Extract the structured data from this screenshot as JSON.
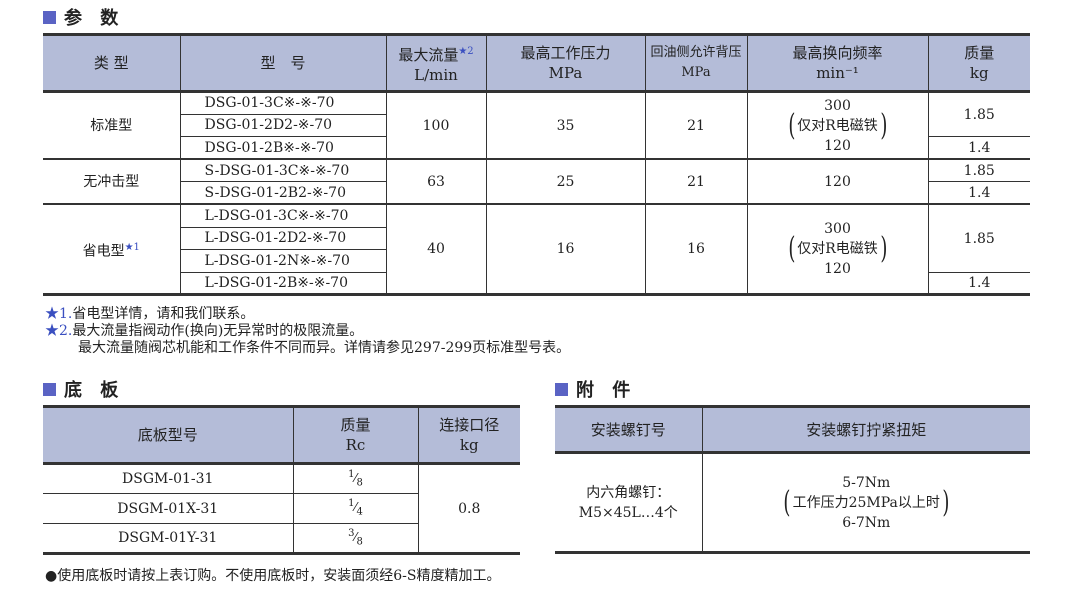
{
  "colors": {
    "header_bg": "#b4bcd8",
    "marker": "#5a63c4",
    "star": "#3a4fc0"
  },
  "params": {
    "title": "参 数",
    "headers": [
      {
        "l1": "类 型"
      },
      {
        "l1": "型　号"
      },
      {
        "l1": "最大流量",
        "sup": "★2",
        "l2": "L/min"
      },
      {
        "l1": "最高工作压力",
        "l2": "MPa"
      },
      {
        "l1": "回油侧允许背压",
        "l2": "MPa"
      },
      {
        "l1": "最高换向频率",
        "l2": "min⁻¹"
      },
      {
        "l1": "质量",
        "l2": "kg"
      }
    ],
    "groups": [
      {
        "type": "标准型",
        "models": [
          "DSG-01-3C※-※-70",
          "DSG-01-2D2-※-70",
          "DSG-01-2B※-※-70"
        ],
        "flow": "100",
        "pressure": "35",
        "back": "21",
        "freq": {
          "a": "300",
          "note": "仅对R电磁铁",
          "b": "120"
        },
        "mass": [
          "1.85",
          "1.4"
        ]
      },
      {
        "type": "无冲击型",
        "models": [
          "S-DSG-01-3C※-※-70",
          "S-DSG-01-2B2-※-70"
        ],
        "flow": "63",
        "pressure": "25",
        "back": "21",
        "freq": "120",
        "mass": [
          "1.85",
          "1.4"
        ]
      },
      {
        "type": "省电型",
        "sup": "★1",
        "models": [
          "L-DSG-01-3C※-※-70",
          "L-DSG-01-2D2-※-70",
          "L-DSG-01-2N※-※-70",
          "L-DSG-01-2B※-※-70"
        ],
        "flow": "40",
        "pressure": "16",
        "back": "16",
        "freq": {
          "a": "300",
          "note": "仅对R电磁铁",
          "b": "120"
        },
        "mass": [
          "1.85",
          "1.4"
        ]
      }
    ],
    "notes": [
      {
        "star": "★1.",
        "text": "省电型详情，请和我们联系。"
      },
      {
        "star": "★2.",
        "text": "最大流量指阀动作(换向)无异常时的极限流量。"
      },
      {
        "star": "",
        "text": "最大流量随阀芯机能和工作条件不同而异。详情请参见297-299页标准型号表。"
      }
    ]
  },
  "base": {
    "title": "底 板",
    "headers": [
      "底板型号",
      {
        "l1": "质量",
        "l2": "Rc"
      },
      {
        "l1": "连接口径",
        "l2": "kg"
      }
    ],
    "rows": [
      {
        "model": "DSGM-01-31",
        "num": "1",
        "den": "8"
      },
      {
        "model": "DSGM-01X-31",
        "num": "1",
        "den": "4"
      },
      {
        "model": "DSGM-01Y-31",
        "num": "3",
        "den": "8"
      }
    ],
    "mass": "0.8",
    "note": "●使用底板时请按上表订购。不使用底板时，安装面须经6-S精度精加工。"
  },
  "acc": {
    "title": "附 件",
    "headers": [
      "安装螺钉号",
      "安装螺钉拧紧扭矩"
    ],
    "screw": [
      "内六角螺钉：",
      "M5×45L…4个"
    ],
    "torque": {
      "a": "5-7Nm",
      "note": "工作压力25MPa以上时",
      "b": "6-7Nm"
    }
  }
}
